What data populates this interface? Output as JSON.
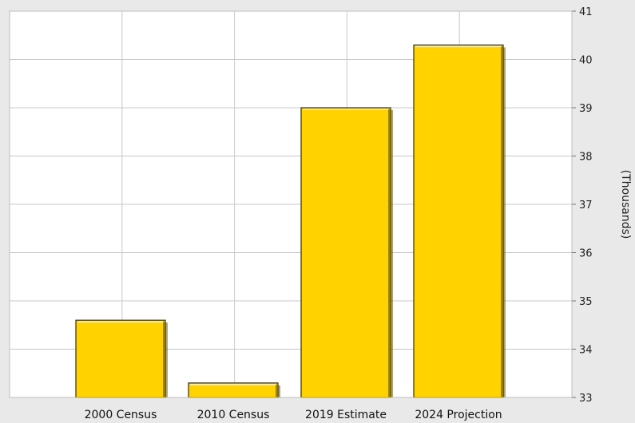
{
  "chart_data": {
    "type": "bar",
    "categories": [
      "2000 Census",
      "2010 Census",
      "2019 Estimate",
      "2024 Projection"
    ],
    "values": [
      34.6,
      33.3,
      39.0,
      40.3
    ],
    "title": "",
    "xlabel": "",
    "ylabel": "(Thousands)",
    "ylim": [
      33,
      41
    ],
    "yticks": [
      "33",
      "34",
      "35",
      "36",
      "37",
      "38",
      "39",
      "40",
      "41"
    ],
    "y_axis_side": "right",
    "grid": true,
    "colors": {
      "bar_fill": "#ffd200",
      "bar_edge": "#3a3000",
      "bar_highlight": "#fff2a0",
      "bar_shadow": "#a08400",
      "plot_bg": "#ffffff",
      "page_bg": "#e9e9e9",
      "grid": "#c8c8c8"
    }
  }
}
